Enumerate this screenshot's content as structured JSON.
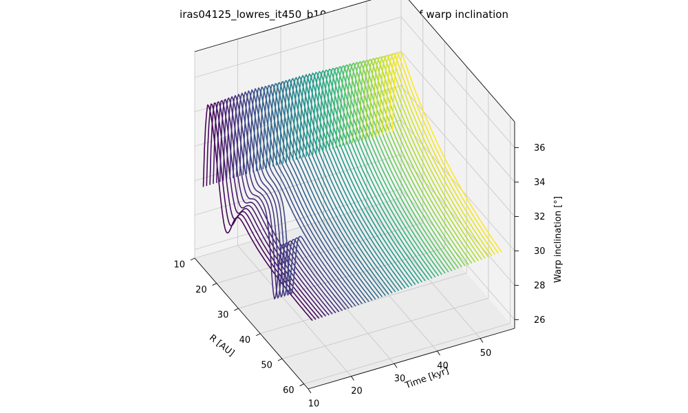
{
  "chart_data": {
    "type": "line",
    "plot_kind": "3d-surface-lines",
    "title": "iras04125_lowres_it450_b10: Time evolution of warp inclination",
    "xlabel": "R [AU]",
    "ylabel": "Time [kyr]",
    "zlabel": "Warp inclination [°]",
    "x_ticks": [
      "10",
      "20",
      "30",
      "40",
      "50",
      "60"
    ],
    "y_ticks": [
      "10",
      "20",
      "30",
      "40",
      "50"
    ],
    "z_ticks": [
      "26",
      "28",
      "30",
      "32",
      "34",
      "36"
    ],
    "xlim": [
      10,
      62
    ],
    "ylim": [
      10,
      58
    ],
    "zlim": [
      25.5,
      37.5
    ],
    "colormap": "viridis",
    "grid": true,
    "time_start": 12,
    "time_end": 56,
    "n_curves": 58,
    "shape_notes": {
      "early_peak": {
        "R": 12,
        "inclination": 35.6
      },
      "late_peak": {
        "R": 14,
        "inclination": 34.8
      },
      "outer_inclination": 29.0,
      "dip_curves_time_range": [
        17,
        22
      ],
      "dip_R": 32,
      "dip_inclination": 25.8
    }
  }
}
